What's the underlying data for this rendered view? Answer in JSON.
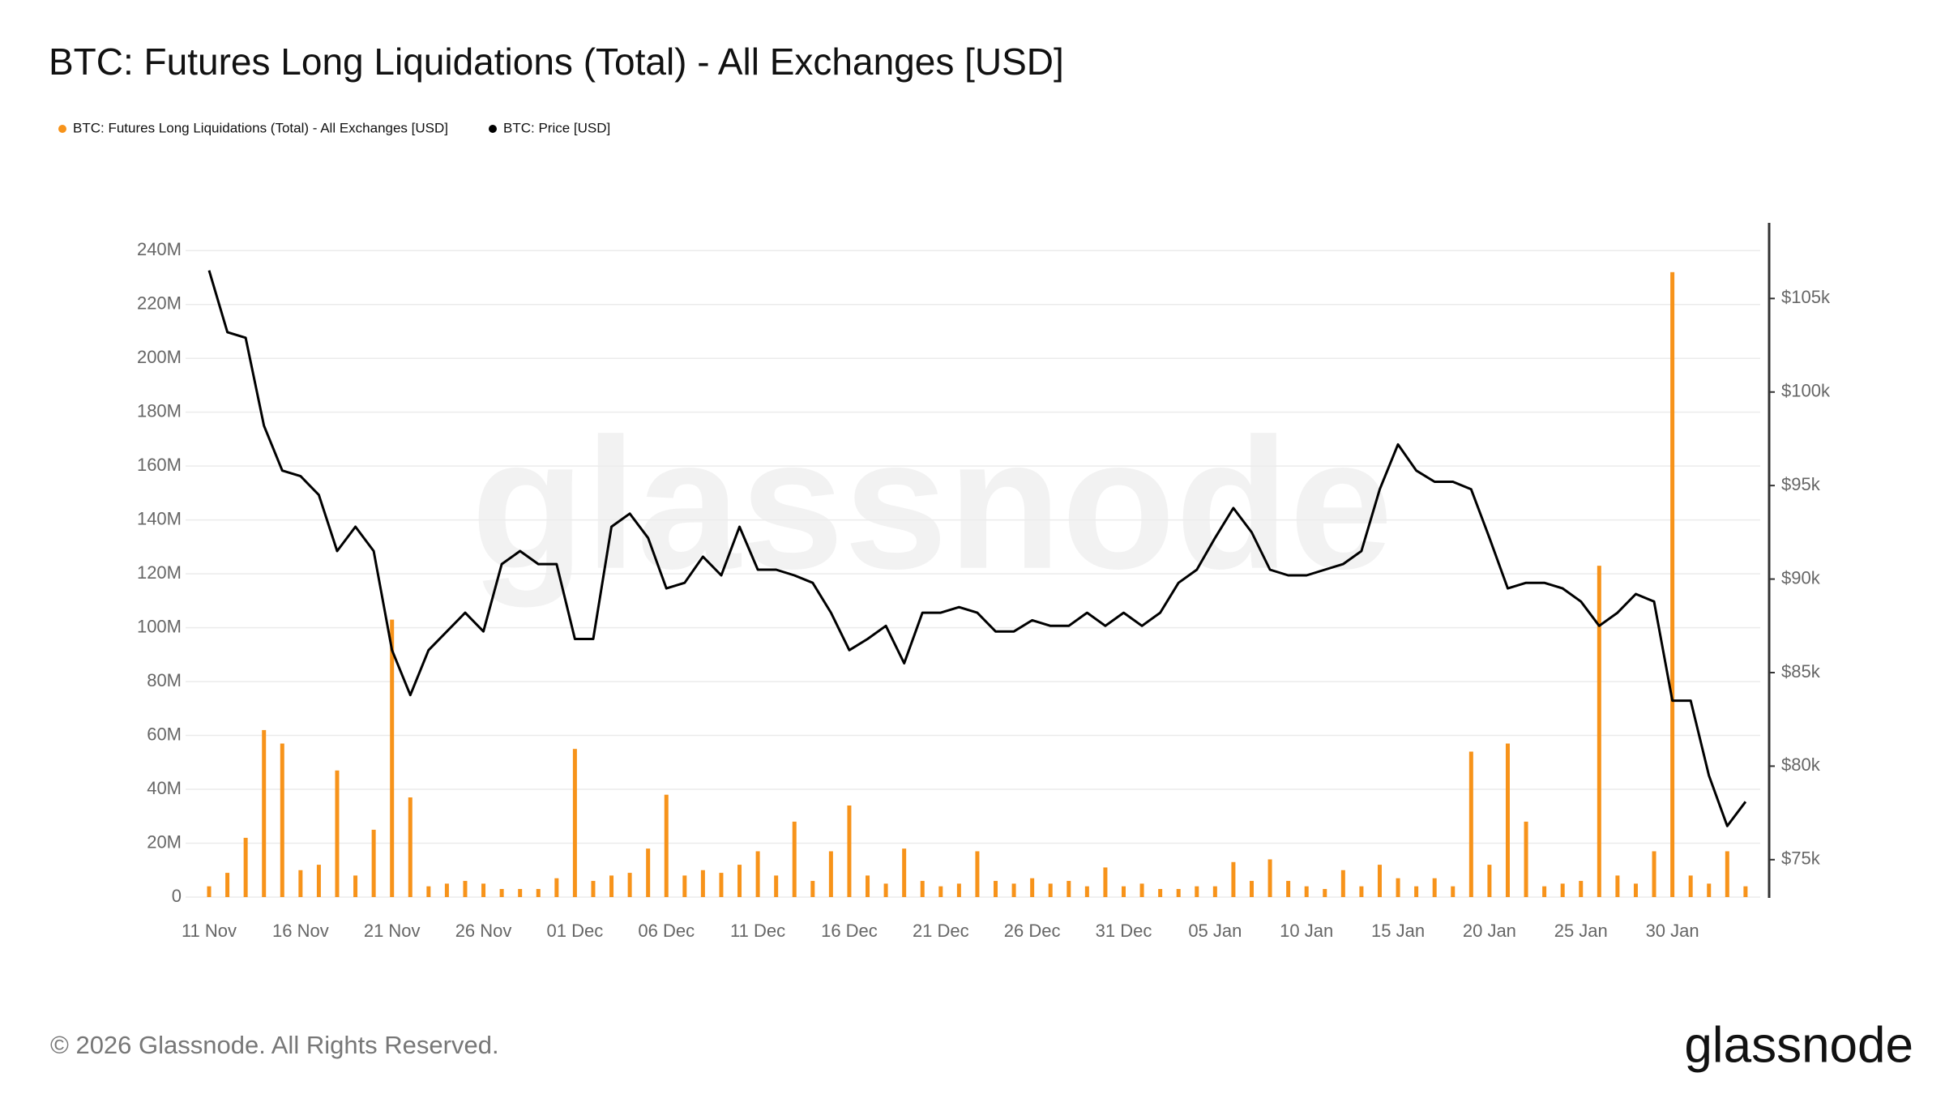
{
  "chart_data": {
    "type": "combo",
    "title": "BTC: Futures Long Liquidations (Total) - All Exchanges [USD]",
    "watermark": "glassnode",
    "copyright": "© 2026 Glassnode. All Rights Reserved.",
    "logo": "glassnode",
    "categories": [
      "11 Nov",
      null,
      null,
      null,
      null,
      "16 Nov",
      null,
      null,
      null,
      null,
      "21 Nov",
      null,
      null,
      null,
      null,
      "26 Nov",
      null,
      null,
      null,
      null,
      "01 Dec",
      null,
      null,
      null,
      null,
      "06 Dec",
      null,
      null,
      null,
      null,
      "11 Dec",
      null,
      null,
      null,
      null,
      "16 Dec",
      null,
      null,
      null,
      null,
      "21 Dec",
      null,
      null,
      null,
      null,
      "26 Dec",
      null,
      null,
      null,
      null,
      "31 Dec",
      null,
      null,
      null,
      null,
      "05 Jan",
      null,
      null,
      null,
      null,
      "10 Jan",
      null,
      null,
      null,
      null,
      "15 Jan",
      null,
      null,
      null,
      null,
      "20 Jan",
      null,
      null,
      null,
      null,
      "25 Jan",
      null,
      null,
      null,
      null,
      "30 Jan",
      null,
      null,
      null,
      null
    ],
    "series": [
      {
        "name": "BTC: Futures Long Liquidations (Total) - All Exchanges [USD]",
        "type": "bar",
        "color": "#f7931a",
        "values": [
          4000000,
          9000000,
          22000000,
          62000000,
          57000000,
          10000000,
          12000000,
          47000000,
          8000000,
          25000000,
          103000000,
          37000000,
          4000000,
          5000000,
          6000000,
          5000000,
          3000000,
          3000000,
          3000000,
          7000000,
          55000000,
          6000000,
          8000000,
          9000000,
          18000000,
          38000000,
          8000000,
          10000000,
          9000000,
          12000000,
          17000000,
          8000000,
          28000000,
          6000000,
          17000000,
          34000000,
          8000000,
          5000000,
          18000000,
          6000000,
          4000000,
          5000000,
          17000000,
          6000000,
          5000000,
          7000000,
          5000000,
          6000000,
          4000000,
          11000000,
          4000000,
          5000000,
          3000000,
          3000000,
          4000000,
          4000000,
          13000000,
          6000000,
          14000000,
          6000000,
          4000000,
          3000000,
          10000000,
          4000000,
          12000000,
          7000000,
          4000000,
          7000000,
          4000000,
          54000000,
          12000000,
          57000000,
          28000000,
          4000000,
          5000000,
          6000000,
          123000000,
          8000000,
          5000000,
          17000000,
          232000000,
          8000000,
          5000000,
          17000000,
          4000000
        ]
      },
      {
        "name": "BTC: Price [USD]",
        "type": "line",
        "axis": "y2",
        "color": "#000000",
        "values": [
          106500,
          103200,
          102900,
          98200,
          95800,
          95500,
          94500,
          91500,
          92800,
          91500,
          86200,
          83800,
          86200,
          87200,
          88200,
          87200,
          90800,
          91500,
          90800,
          90800,
          86800,
          86800,
          92800,
          93500,
          92200,
          89500,
          89800,
          91200,
          90200,
          92800,
          90500,
          90500,
          90200,
          89800,
          88200,
          86200,
          86800,
          87500,
          85500,
          88200,
          88200,
          88500,
          88200,
          87200,
          87200,
          87800,
          87500,
          87500,
          88200,
          87500,
          88200,
          87500,
          88200,
          89800,
          90500,
          92200,
          93800,
          92500,
          90500,
          90200,
          90200,
          90500,
          90800,
          91500,
          94800,
          97200,
          95800,
          95200,
          95200,
          94800,
          92200,
          89500,
          89800,
          89800,
          89500,
          88800,
          87500,
          88200,
          89200,
          88800,
          83500,
          83500,
          79500,
          76800,
          78100
        ]
      }
    ],
    "ylim": [
      0,
      250000000
    ],
    "yticks": [
      0,
      {
        "value": 20000000,
        "label": "20M"
      },
      {
        "value": 40000000,
        "label": "40M"
      },
      {
        "value": 60000000,
        "label": "60M"
      },
      {
        "value": 80000000,
        "label": "80M"
      },
      {
        "value": 100000000,
        "label": "100M"
      },
      {
        "value": 120000000,
        "label": "120M"
      },
      {
        "value": 140000000,
        "label": "140M"
      },
      {
        "value": 160000000,
        "label": "160M"
      },
      {
        "value": 180000000,
        "label": "180M"
      },
      {
        "value": 200000000,
        "label": "200M"
      },
      {
        "value": 220000000,
        "label": "220M"
      },
      {
        "value": 240000000,
        "label": "240M"
      }
    ],
    "y2lim": [
      73000,
      109000
    ],
    "y2ticks": [
      {
        "value": 75000,
        "label": "$75k"
      },
      {
        "value": 80000,
        "label": "$80k"
      },
      {
        "value": 85000,
        "label": "$85k"
      },
      {
        "value": 90000,
        "label": "$90k"
      },
      {
        "value": 95000,
        "label": "$95k"
      },
      {
        "value": 100000,
        "label": "$100k"
      },
      {
        "value": 105000,
        "label": "$105k"
      }
    ],
    "grid": true
  }
}
